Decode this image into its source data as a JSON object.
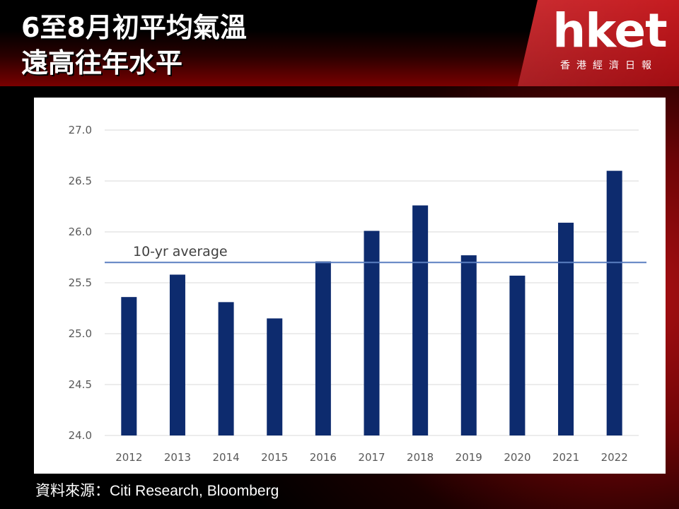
{
  "header": {
    "title_line1": "6至8月初平均氣溫",
    "title_line2": "遠高往年水平"
  },
  "logo": {
    "word": "hket",
    "sub": "香港經濟日報",
    "color": "#c4161b"
  },
  "source": "資料來源：Citi Research, Bloomberg",
  "chart_data": {
    "type": "bar",
    "title": "",
    "xlabel": "",
    "ylabel": "",
    "categories": [
      "2012",
      "2013",
      "2014",
      "2015",
      "2016",
      "2017",
      "2018",
      "2019",
      "2020",
      "2021",
      "2022"
    ],
    "series": [
      {
        "values": [
          25.36,
          25.58,
          25.31,
          25.15,
          25.71,
          26.01,
          26.26,
          25.77,
          25.57,
          26.09,
          26.6
        ]
      }
    ],
    "ylim": [
      24.0,
      27.0
    ],
    "yticks": [
      "24.0",
      "24.5",
      "25.0",
      "25.5",
      "26.0",
      "26.5",
      "27.0"
    ],
    "reference_line": {
      "label": "10-yr average",
      "value": 25.7
    },
    "grid": true,
    "bar_color": "#0d2b6e",
    "line_color": "#5b7fc1"
  }
}
